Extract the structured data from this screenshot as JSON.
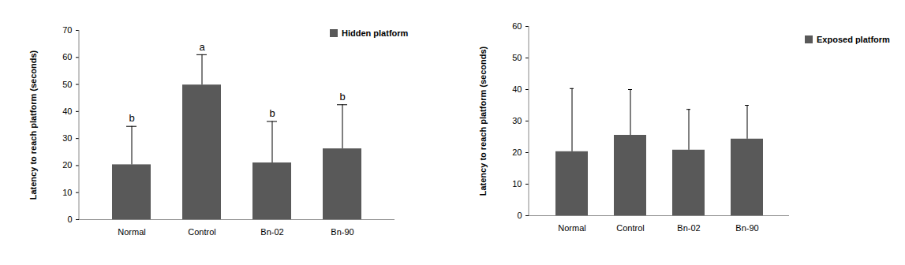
{
  "chart_data": [
    {
      "type": "bar",
      "categories": [
        "Normal",
        "Control",
        "Bn-02",
        "Bn-90"
      ],
      "series": [
        {
          "name": "Hidden platform",
          "color": "#595959",
          "values": [
            20.3,
            49.8,
            21.0,
            26.2
          ],
          "errors": [
            14.2,
            11.2,
            15.3,
            16.3
          ]
        }
      ],
      "annotations": [
        "b",
        "a",
        "b",
        "b"
      ],
      "y_label": "Latency to reach platform (seconds)",
      "ylim": [
        0,
        70
      ],
      "yticks": [
        0,
        10,
        20,
        30,
        40,
        50,
        60,
        70
      ],
      "legend": "upper right",
      "grid": false
    },
    {
      "type": "bar",
      "categories": [
        "Normal",
        "Control",
        "Bn-02",
        "Bn-90"
      ],
      "series": [
        {
          "name": "Exposed platform",
          "color": "#595959",
          "values": [
            20.3,
            25.5,
            20.8,
            24.3
          ],
          "errors": [
            20.0,
            14.5,
            12.9,
            10.7
          ]
        }
      ],
      "y_label": "Latency to reach platform (seconds)",
      "ylim": [
        0,
        60
      ],
      "yticks": [
        0,
        10,
        20,
        30,
        40,
        50,
        60
      ],
      "legend": "upper right",
      "grid": false
    }
  ]
}
